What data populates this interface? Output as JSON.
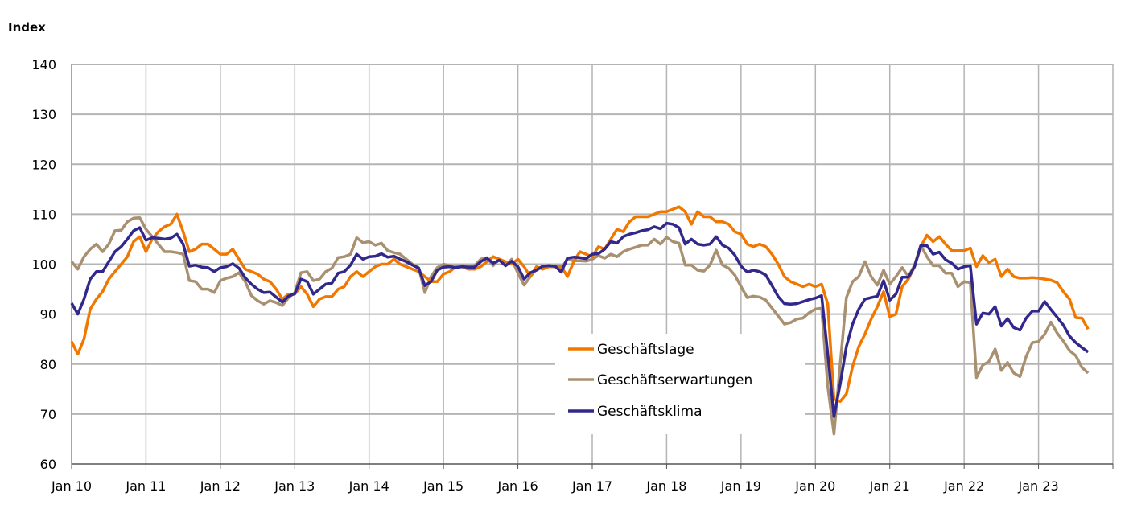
{
  "chart_data": {
    "type": "line",
    "title": "",
    "ylabel": "Index",
    "xlabel": "",
    "ylim": [
      60,
      140
    ],
    "yticks": [
      60,
      70,
      80,
      90,
      100,
      110,
      120,
      130,
      140
    ],
    "xticks": [
      "Jan 10",
      "Jan 11",
      "Jan 12",
      "Jan 13",
      "Jan 14",
      "Jan 15",
      "Jan 16",
      "Jan 17",
      "Jan 18",
      "Jan 19",
      "Jan 20",
      "Jan 21",
      "Jan 22",
      "Jan 23"
    ],
    "x_start": "Jan 2010",
    "x_frequency": "monthly",
    "grid": true,
    "legend_position": "bottom-center",
    "series": [
      {
        "name": "Geschäftslage",
        "color": "#F07800",
        "values": [
          84.5,
          82,
          85,
          91,
          93,
          94.5,
          97,
          98.5,
          100,
          101.5,
          104.5,
          105.5,
          102.5,
          105,
          106.5,
          107.5,
          108,
          110,
          106.5,
          102.5,
          103,
          104,
          104,
          103,
          102,
          102,
          103,
          101,
          99,
          98.5,
          98,
          97,
          96.5,
          95,
          93,
          94,
          94,
          95.5,
          94,
          91.5,
          93,
          93.5,
          93.5,
          95,
          95.5,
          97.5,
          98.5,
          97.5,
          98.5,
          99.5,
          100,
          100,
          101,
          100,
          99.5,
          99,
          98.5,
          97.5,
          96.5,
          96.5,
          98,
          98.5,
          99.5,
          99.5,
          99,
          99,
          99.5,
          100.5,
          101.5,
          101,
          100.5,
          100,
          101,
          99.5,
          97.5,
          99.5,
          99,
          99.5,
          99.5,
          99.5,
          97.5,
          100.5,
          102.5,
          102,
          101.5,
          103.5,
          103,
          105,
          107,
          106.5,
          108.5,
          109.5,
          109.5,
          109.5,
          110,
          110.5,
          110.5,
          111,
          111.5,
          110.5,
          108,
          110.5,
          109.5,
          109.5,
          108.5,
          108.5,
          108,
          106.5,
          106,
          104,
          103.5,
          104,
          103.5,
          102,
          100,
          97.5,
          96.5,
          96,
          95.5,
          96,
          95.5,
          96,
          92,
          73,
          72.5,
          74,
          79.5,
          83.5,
          86,
          89,
          91.5,
          94.5,
          89.5,
          90,
          95.5,
          97,
          99.5,
          103.5,
          105.8,
          104.5,
          105.5,
          104,
          102.7,
          102.7,
          102.7,
          103.2,
          99.5,
          101.7,
          100.3,
          101,
          97.5,
          99,
          97.5,
          97.2,
          97.2,
          97.3,
          97.2,
          97,
          96.8,
          96.3,
          94.5,
          93,
          89.3,
          89.2,
          87
        ]
      },
      {
        "name": "Geschäftserwartungen",
        "color": "#A89070",
        "values": [
          100.5,
          99,
          101.5,
          103,
          104,
          102.5,
          104,
          106.7,
          106.8,
          108.5,
          109.2,
          109.3,
          107,
          105.5,
          104,
          102.5,
          102.5,
          102.3,
          102,
          96.7,
          96.5,
          95,
          95,
          94.3,
          96.7,
          97.2,
          97.5,
          98.3,
          96.5,
          93.7,
          92.7,
          92,
          92.7,
          92.3,
          91.7,
          93.3,
          94.3,
          98.3,
          98.5,
          96.7,
          97,
          98.5,
          99.2,
          101.3,
          101.5,
          102,
          105.3,
          104.3,
          104.5,
          103.8,
          104.2,
          102.7,
          102.3,
          102,
          101,
          100,
          99.3,
          94.3,
          97.5,
          99.3,
          100,
          99.7,
          99.3,
          99.7,
          99.5,
          99.7,
          101,
          101.3,
          99.7,
          101,
          99.7,
          101,
          98.2,
          95.8,
          97.5,
          99,
          99.5,
          99.7,
          99.5,
          99.2,
          101,
          100.7,
          100.7,
          100.6,
          101,
          101.7,
          101.2,
          102,
          101.5,
          102.5,
          103,
          103.4,
          103.8,
          103.8,
          105,
          104,
          105.4,
          104.5,
          104.2,
          99.8,
          99.8,
          98.8,
          98.6,
          99.8,
          102.8,
          99.8,
          99.2,
          97.8,
          95.5,
          93.3,
          93.6,
          93.4,
          92.8,
          91.2,
          89.6,
          88,
          88.3,
          89,
          89.2,
          90.3,
          91,
          91.2,
          75.5,
          66,
          80,
          93.3,
          96.5,
          97.5,
          100.5,
          97.5,
          95.8,
          98.8,
          96,
          97.5,
          99.3,
          97.5,
          99.8,
          103.7,
          101.5,
          99.7,
          99.7,
          98.2,
          98.2,
          95.5,
          96.5,
          96.3,
          77.3,
          79.8,
          80.5,
          83,
          78.7,
          80.3,
          78.2,
          77.5,
          81.5,
          84.3,
          84.5,
          86,
          88.4,
          86.2,
          84.6,
          82.7,
          81.7,
          79.3,
          78.2
        ]
      },
      {
        "name": "Geschäftsklima",
        "color": "#32288C",
        "values": [
          92.2,
          90,
          93,
          97,
          98.5,
          98.5,
          100.5,
          102.5,
          103.5,
          105,
          106.7,
          107.3,
          104.8,
          105.3,
          105.2,
          105,
          105.2,
          106,
          104,
          99.6,
          99.8,
          99.4,
          99.3,
          98.5,
          99.3,
          99.5,
          100.1,
          99.2,
          97.3,
          96,
          95,
          94.3,
          94.4,
          93.4,
          92.4,
          93.6,
          94.1,
          97,
          96.5,
          94,
          95,
          96,
          96.2,
          98.2,
          98.5,
          99.8,
          102,
          101,
          101.5,
          101.6,
          102.1,
          101.4,
          101.6,
          101,
          100.5,
          99.8,
          99.2,
          95.7,
          96.5,
          98.8,
          99.4,
          99.5,
          99.3,
          99.5,
          99.4,
          99.4,
          100.5,
          101.2,
          100.2,
          100.8,
          99.7,
          100.6,
          99.5,
          97,
          98.3,
          98.8,
          99.6,
          99.7,
          99.6,
          98.4,
          101.2,
          101.4,
          101.3,
          101.1,
          102,
          102.1,
          103,
          104.5,
          104.2,
          105.5,
          106,
          106.3,
          106.7,
          106.9,
          107.5,
          107.1,
          108.2,
          108,
          107.3,
          104,
          105,
          104,
          103.8,
          104,
          105.5,
          103.8,
          103.2,
          101.8,
          99.6,
          98.4,
          98.8,
          98.5,
          97.8,
          95.7,
          93.5,
          92.1,
          92,
          92.1,
          92.5,
          92.9,
          93.2,
          93.7,
          82,
          69.5,
          76,
          83.5,
          88,
          91,
          93,
          93.3,
          93.6,
          96.7,
          92.8,
          94,
          97.4,
          97.4,
          99.5,
          103.7,
          103.7,
          102,
          102.4,
          100.9,
          100.2,
          99,
          99.5,
          99.7,
          88,
          90.2,
          90,
          91.5,
          87.6,
          89.1,
          87.3,
          86.8,
          89.2,
          90.6,
          90.6,
          92.5,
          90.9,
          89.4,
          87.8,
          85.6,
          84.3,
          83.3,
          82.4
        ]
      }
    ]
  }
}
